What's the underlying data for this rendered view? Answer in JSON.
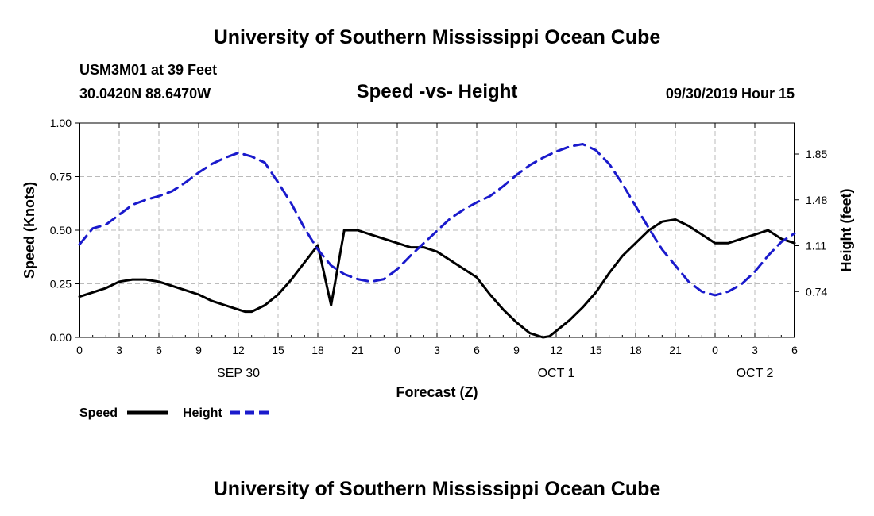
{
  "header": {
    "title_top": "University of Southern Mississippi Ocean Cube",
    "station": "USM3M01 at 39 Feet",
    "coords": "30.0420N 88.6470W",
    "chart_title": "Speed -vs- Height",
    "datetime": "09/30/2019 Hour 15"
  },
  "footer": {
    "title_bottom": "University of Southern Mississippi Ocean Cube"
  },
  "colors": {
    "speed": "#000000",
    "height": "#1a1acc",
    "grid": "#bbbbbb"
  },
  "chart_data": {
    "type": "line",
    "title": "Speed -vs- Height",
    "xlabel": "Forecast (Z)",
    "ylabel": "Speed (Knots)",
    "y2label": "Height (feet)",
    "xlim": [
      0,
      54
    ],
    "ylim": [
      0,
      1
    ],
    "y2lim": [
      0.37,
      2.1
    ],
    "x_ticks": [
      0,
      3,
      6,
      9,
      12,
      15,
      18,
      21,
      24,
      27,
      30,
      33,
      36,
      39,
      42,
      45,
      48,
      51,
      54
    ],
    "x_tick_labels": [
      "0",
      "3",
      "6",
      "9",
      "12",
      "15",
      "18",
      "21",
      "0",
      "3",
      "6",
      "9",
      "12",
      "15",
      "18",
      "21",
      "0",
      "3",
      "6"
    ],
    "day_labels": [
      {
        "x": 12,
        "label": "SEP 30"
      },
      {
        "x": 36,
        "label": "OCT 1"
      },
      {
        "x": 51,
        "label": "OCT 2"
      }
    ],
    "y_ticks": [
      0,
      0.25,
      0.5,
      0.75,
      1.0
    ],
    "y_tick_labels": [
      "0.00",
      "0.25",
      "0.50",
      "0.75",
      "1.00"
    ],
    "y2_ticks": [
      0.74,
      1.11,
      1.48,
      1.85
    ],
    "y2_tick_labels": [
      "0.74",
      "1.11",
      "1.48",
      "1.85"
    ],
    "grid": true,
    "legend_position": "bottom-left",
    "series": [
      {
        "name": "Speed",
        "axis": "left",
        "style": "solid",
        "x": [
          0,
          1,
          2,
          3,
          4,
          5,
          6,
          7,
          8,
          9,
          10,
          11,
          12,
          12.5,
          13,
          14,
          15,
          16,
          17,
          18,
          19,
          20,
          21,
          22,
          23,
          24,
          25,
          26,
          27,
          28,
          29,
          30,
          31,
          32,
          33,
          34,
          35,
          35.5,
          36,
          37,
          38,
          39,
          40,
          41,
          42,
          43,
          44,
          45,
          46,
          47,
          48,
          49,
          50,
          51,
          52,
          53,
          54
        ],
        "values": [
          0.19,
          0.21,
          0.23,
          0.26,
          0.27,
          0.27,
          0.26,
          0.24,
          0.22,
          0.2,
          0.17,
          0.15,
          0.13,
          0.12,
          0.12,
          0.15,
          0.2,
          0.27,
          0.35,
          0.43,
          0.15,
          0.5,
          0.5,
          0.48,
          0.46,
          0.44,
          0.42,
          0.42,
          0.4,
          0.36,
          0.32,
          0.28,
          0.2,
          0.13,
          0.07,
          0.02,
          0.0,
          0.005,
          0.03,
          0.08,
          0.14,
          0.21,
          0.3,
          0.38,
          0.44,
          0.5,
          0.54,
          0.55,
          0.52,
          0.48,
          0.44,
          0.44,
          0.46,
          0.48,
          0.5,
          0.46,
          0.44
        ]
      },
      {
        "name": "Height",
        "axis": "right",
        "style": "dashed",
        "x": [
          0,
          1,
          2,
          3,
          4,
          5,
          6,
          7,
          8,
          9,
          10,
          11,
          12,
          13,
          14,
          15,
          16,
          17,
          18,
          19,
          20,
          21,
          22,
          23,
          24,
          25,
          26,
          27,
          28,
          29,
          30,
          31,
          32,
          33,
          34,
          35,
          36,
          37,
          38,
          39,
          40,
          41,
          42,
          43,
          44,
          45,
          46,
          47,
          48,
          49,
          50,
          51,
          52,
          53,
          54
        ],
        "values": [
          1.12,
          1.25,
          1.28,
          1.36,
          1.44,
          1.48,
          1.51,
          1.55,
          1.62,
          1.7,
          1.77,
          1.82,
          1.86,
          1.83,
          1.78,
          1.62,
          1.45,
          1.25,
          1.08,
          0.95,
          0.88,
          0.84,
          0.82,
          0.84,
          0.92,
          1.03,
          1.13,
          1.23,
          1.33,
          1.4,
          1.46,
          1.51,
          1.59,
          1.68,
          1.76,
          1.82,
          1.87,
          1.91,
          1.93,
          1.88,
          1.77,
          1.61,
          1.43,
          1.25,
          1.08,
          0.95,
          0.82,
          0.74,
          0.71,
          0.74,
          0.8,
          0.9,
          1.03,
          1.14,
          1.21
        ]
      }
    ]
  }
}
